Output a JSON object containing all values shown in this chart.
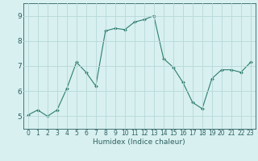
{
  "x": [
    0,
    1,
    2,
    3,
    4,
    5,
    6,
    7,
    8,
    9,
    10,
    11,
    12,
    13,
    14,
    15,
    16,
    17,
    18,
    19,
    20,
    21,
    22,
    23
  ],
  "y": [
    5.05,
    5.25,
    5.0,
    5.25,
    6.1,
    7.15,
    6.75,
    6.2,
    8.4,
    8.5,
    8.45,
    8.75,
    8.85,
    9.0,
    7.3,
    6.95,
    6.35,
    5.55,
    5.3,
    6.5,
    6.85,
    6.85,
    6.75,
    7.15
  ],
  "xlabel": "Humidex (Indice chaleur)",
  "line_color": "#2e7d6e",
  "marker": "D",
  "marker_size": 2.0,
  "bg_color": "#d8f0f0",
  "grid_color": "#b8d8d8",
  "axis_color": "#2e6060",
  "text_color": "#2e6060",
  "ylim": [
    4.5,
    9.5
  ],
  "xlim": [
    -0.5,
    23.5
  ],
  "yticks": [
    5,
    6,
    7,
    8,
    9
  ],
  "xticks": [
    0,
    1,
    2,
    3,
    4,
    5,
    6,
    7,
    8,
    9,
    10,
    11,
    12,
    13,
    14,
    15,
    16,
    17,
    18,
    19,
    20,
    21,
    22,
    23
  ],
  "xlabel_fontsize": 6.5,
  "ytick_fontsize": 6.5,
  "xtick_fontsize": 5.5
}
